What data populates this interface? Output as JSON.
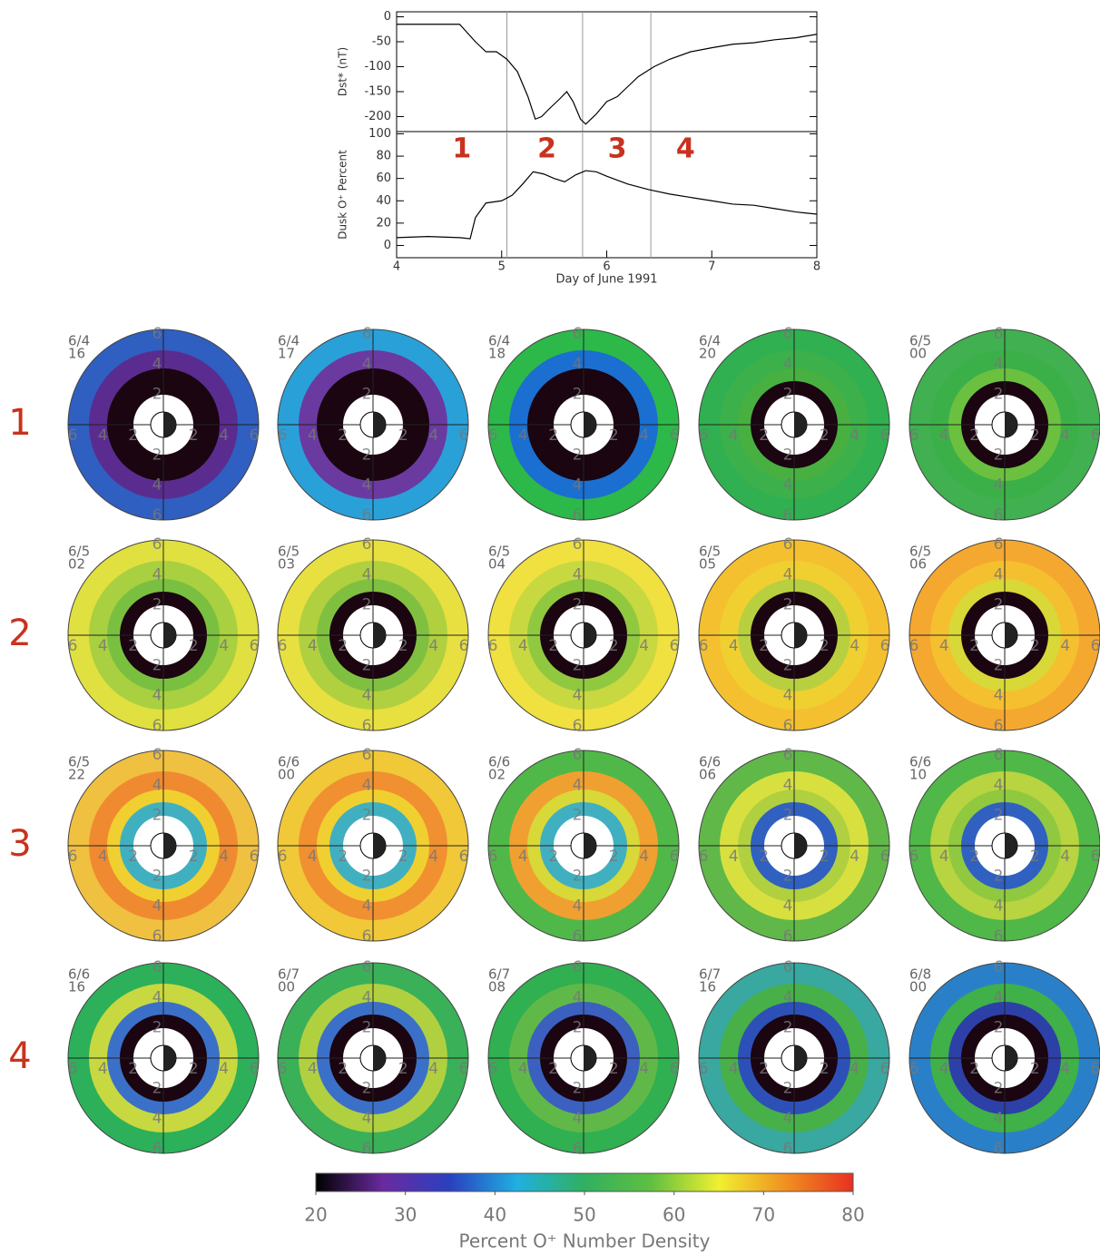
{
  "chart_data": [
    {
      "type": "line",
      "ylabel": "Dst* (nT)",
      "xlim": [
        4,
        8
      ],
      "ylim": [
        -230,
        10
      ],
      "yticks": [
        0,
        -50,
        -100,
        -150,
        -200
      ],
      "vlines": [
        5.05,
        5.77,
        6.42
      ],
      "color": "#000000",
      "x": [
        4.0,
        4.6,
        4.75,
        4.85,
        4.95,
        5.05,
        5.15,
        5.25,
        5.32,
        5.38,
        5.45,
        5.55,
        5.62,
        5.68,
        5.75,
        5.8,
        5.9,
        6.0,
        6.1,
        6.2,
        6.3,
        6.45,
        6.6,
        6.8,
        7.0,
        7.2,
        7.4,
        7.6,
        7.8,
        8.0
      ],
      "values": [
        -15,
        -15,
        -50,
        -70,
        -70,
        -85,
        -110,
        -160,
        -205,
        -200,
        -185,
        -165,
        -150,
        -170,
        -205,
        -215,
        -195,
        -170,
        -160,
        -140,
        -120,
        -100,
        -85,
        -70,
        -62,
        -55,
        -52,
        -46,
        -42,
        -35
      ]
    },
    {
      "type": "line",
      "ylabel": "Dusk O⁺ Percent",
      "xlabel": "Day of June 1991",
      "xlim": [
        4,
        8
      ],
      "xticks": [
        4,
        5,
        6,
        7,
        8
      ],
      "ylim": [
        -11,
        102
      ],
      "yticks": [
        0,
        20,
        40,
        60,
        80,
        100
      ],
      "vlines": [
        5.05,
        5.77,
        6.42
      ],
      "color": "#000000",
      "annotations": [
        {
          "text": "1",
          "x": 4.62
        },
        {
          "text": "2",
          "x": 5.43
        },
        {
          "text": "3",
          "x": 6.1
        },
        {
          "text": "4",
          "x": 6.75
        }
      ],
      "annotation_color": "#c8321e",
      "x": [
        4.0,
        4.3,
        4.6,
        4.7,
        4.75,
        4.85,
        5.0,
        5.1,
        5.2,
        5.3,
        5.4,
        5.5,
        5.6,
        5.7,
        5.8,
        5.9,
        6.0,
        6.2,
        6.4,
        6.6,
        6.8,
        7.0,
        7.2,
        7.4,
        7.6,
        7.8,
        8.0
      ],
      "values": [
        7,
        8,
        7,
        6,
        25,
        38,
        40,
        45,
        55,
        66,
        64,
        60,
        57,
        63,
        67,
        66,
        62,
        55,
        50,
        46,
        43,
        40,
        37,
        36,
        33,
        30,
        28
      ]
    },
    {
      "type": "polar-grid",
      "row_labels": [
        "1",
        "2",
        "3",
        "4"
      ],
      "row_label_color": "#c8321e",
      "rticks": [
        2,
        4,
        6
      ],
      "rlim": 6.3,
      "panels": [
        {
          "date": "6/4",
          "hour": "16",
          "colors": [
            "#1a0510",
            "#1a0510",
            "#5b2c8f",
            "#2f5fc0"
          ]
        },
        {
          "date": "6/4",
          "hour": "17",
          "colors": [
            "#1a0510",
            "#1a0510",
            "#6a3aa0",
            "#2aa0d8"
          ]
        },
        {
          "date": "6/4",
          "hour": "18",
          "colors": [
            "#1a0510",
            "#1a0510",
            "#1a6fd0",
            "#2db84a"
          ]
        },
        {
          "date": "6/4",
          "hour": "20",
          "colors": [
            "#1a0510",
            "#48b040",
            "#3cb04a",
            "#30b050"
          ]
        },
        {
          "date": "6/5",
          "hour": "00",
          "colors": [
            "#1a0510",
            "#6cc040",
            "#3cb048",
            "#40b050"
          ]
        },
        {
          "date": "6/5",
          "hour": "02",
          "colors": [
            "#1a0510",
            "#7ac040",
            "#a8d040",
            "#e0e040"
          ]
        },
        {
          "date": "6/5",
          "hour": "03",
          "colors": [
            "#1a0510",
            "#80c040",
            "#b0d040",
            "#e8e040"
          ]
        },
        {
          "date": "6/5",
          "hour": "04",
          "colors": [
            "#1a0510",
            "#90c840",
            "#c8d840",
            "#f0e040"
          ]
        },
        {
          "date": "6/5",
          "hour": "05",
          "colors": [
            "#1a0510",
            "#b8d040",
            "#f0d030",
            "#f5c030"
          ]
        },
        {
          "date": "6/5",
          "hour": "06",
          "colors": [
            "#1a0510",
            "#d8d838",
            "#f5c030",
            "#f5a830"
          ]
        },
        {
          "date": "6/5",
          "hour": "22",
          "colors": [
            "#40b0c0",
            "#f0d030",
            "#f08a30",
            "#f0c040"
          ]
        },
        {
          "date": "6/6",
          "hour": "00",
          "colors": [
            "#40b0c0",
            "#f0d030",
            "#f09030",
            "#f0c838"
          ]
        },
        {
          "date": "6/6",
          "hour": "02",
          "colors": [
            "#40b0c0",
            "#d8d838",
            "#f0a030",
            "#50b848"
          ]
        },
        {
          "date": "6/6",
          "hour": "06",
          "colors": [
            "#3060c0",
            "#b0d040",
            "#d8e040",
            "#60b848"
          ]
        },
        {
          "date": "6/6",
          "hour": "10",
          "colors": [
            "#3060c0",
            "#90c840",
            "#b8d440",
            "#50b848"
          ]
        },
        {
          "date": "6/6",
          "hour": "16",
          "colors": [
            "#1a0510",
            "#3b70c8",
            "#c8d840",
            "#2cb05a"
          ]
        },
        {
          "date": "6/7",
          "hour": "00",
          "colors": [
            "#1a0510",
            "#3b70c8",
            "#b0d040",
            "#3ab058"
          ]
        },
        {
          "date": "6/7",
          "hour": "08",
          "colors": [
            "#1a0510",
            "#3b60c0",
            "#60b848",
            "#30b050"
          ]
        },
        {
          "date": "6/7",
          "hour": "16",
          "colors": [
            "#1a0510",
            "#2d50b8",
            "#48b048",
            "#38a8a0"
          ]
        },
        {
          "date": "6/8",
          "hour": "00",
          "colors": [
            "#1a0510",
            "#2d40a8",
            "#40b048",
            "#2a80c8"
          ]
        }
      ]
    },
    {
      "type": "colorbar",
      "label": "Percent O⁺ Number Density",
      "lim": [
        20,
        80
      ],
      "ticks": [
        20,
        30,
        40,
        50,
        60,
        70,
        80
      ],
      "colors": [
        "#000000",
        "#6a2aa0",
        "#2a40c0",
        "#20b0e0",
        "#30b060",
        "#60c040",
        "#f0f030",
        "#f09020",
        "#e83020"
      ]
    }
  ]
}
